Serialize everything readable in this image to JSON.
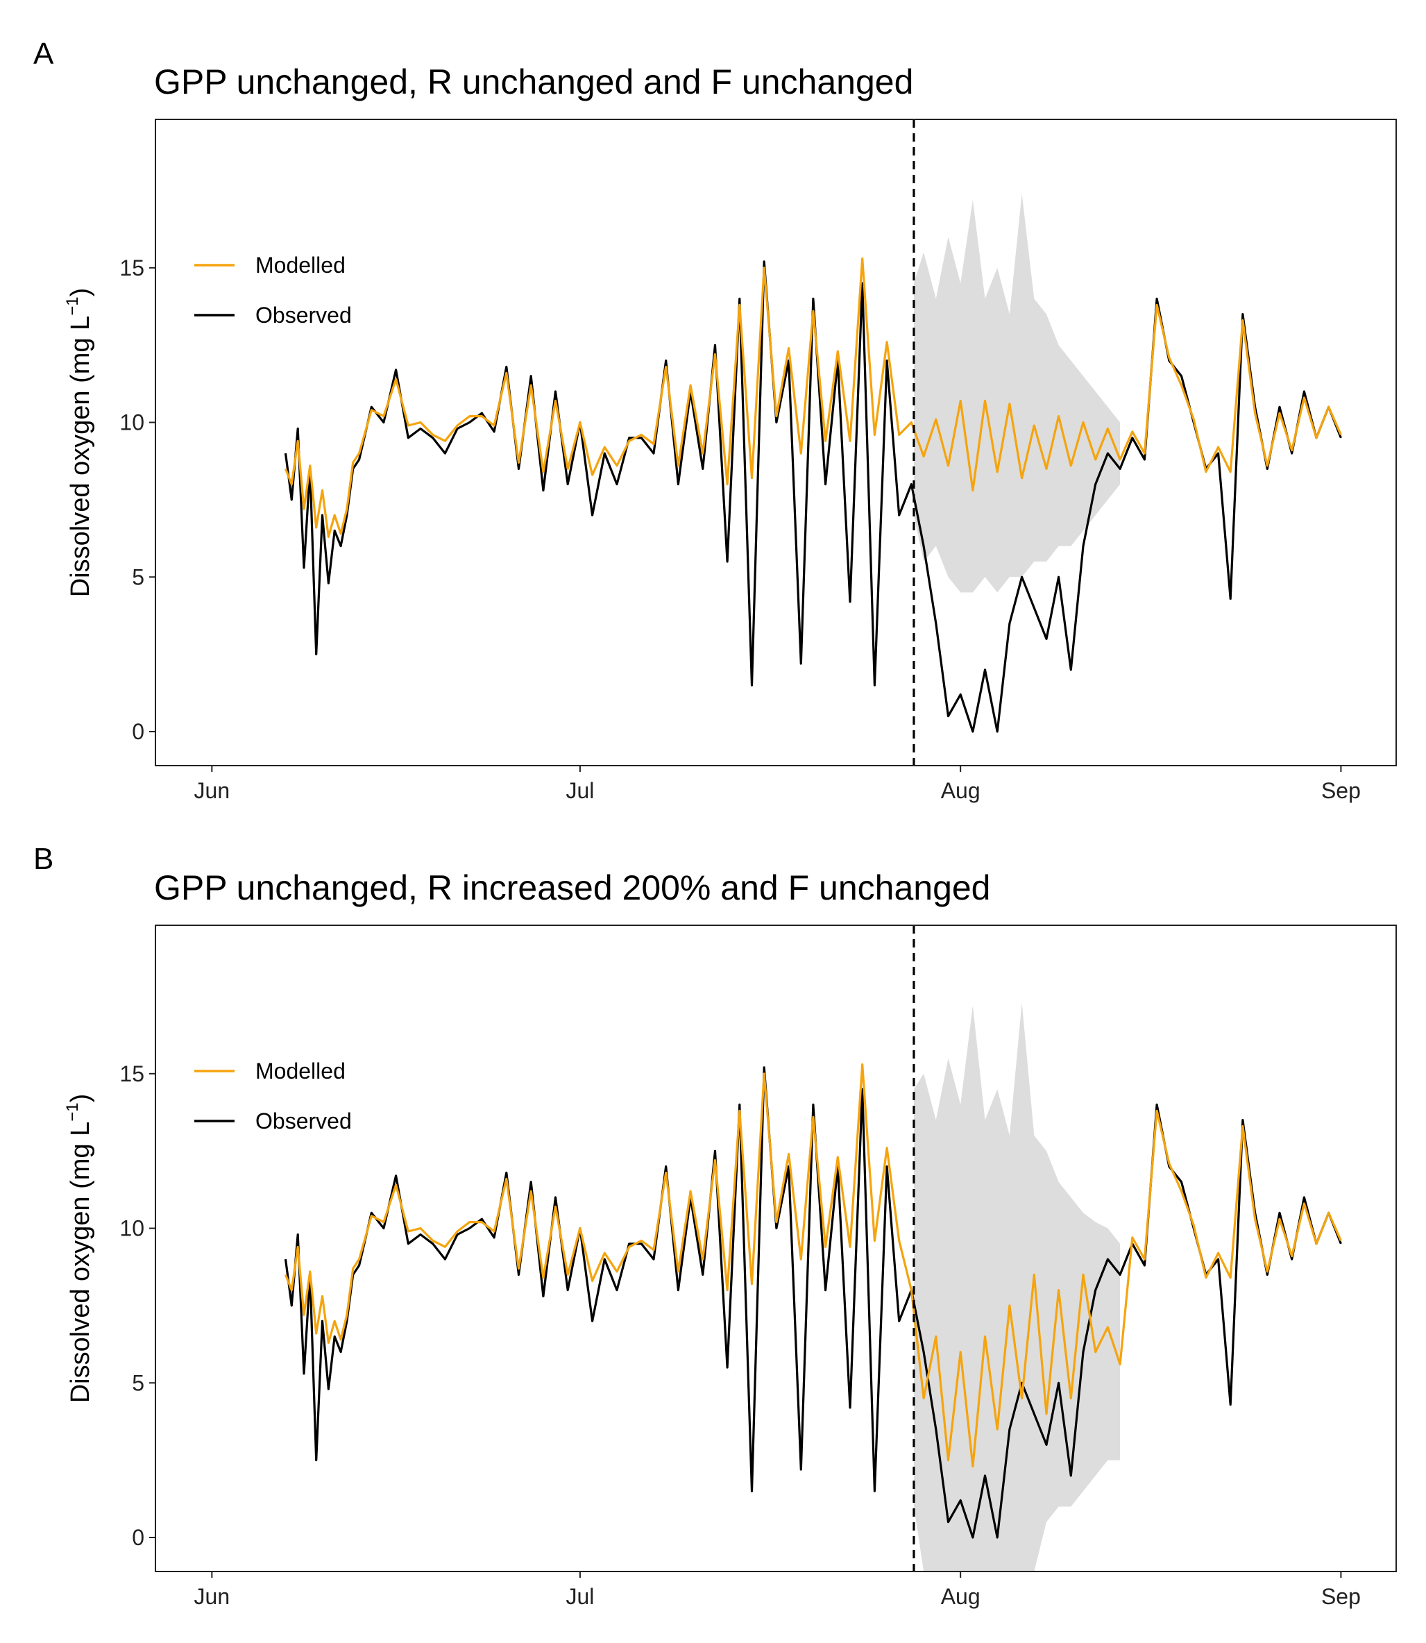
{
  "chart_data": [
    {
      "panel_label": "A",
      "type": "line",
      "title": "GPP unchanged, R unchanged and F unchanged",
      "ylabel_main": "Dissolved oxygen (mg L",
      "ylabel_sup": "−1",
      "ylabel_close": ")",
      "xlabel": "",
      "x_ticks": [
        {
          "label": "Jun",
          "day": 0
        },
        {
          "label": "Jul",
          "day": 30
        },
        {
          "label": "Aug",
          "day": 61
        },
        {
          "label": "Sep",
          "day": 92
        }
      ],
      "y_ticks": [
        0,
        5,
        10,
        15
      ],
      "xlim": [
        -4.6,
        96.5
      ],
      "ylim": [
        -1.1,
        19.8
      ],
      "breakpoint_day": 57.2,
      "grid": false,
      "legend_position": "top-left",
      "legend": {
        "modelled": "Modelled",
        "observed": "Observed"
      },
      "colors": {
        "modelled": "#F5A40E",
        "observed": "#000000",
        "band": "#DDDDDD",
        "vline": "#000000"
      },
      "series": [
        {
          "name": "Observed",
          "x": [
            6,
            6.5,
            7,
            7.5,
            8,
            8.5,
            9,
            9.5,
            10,
            10.5,
            11,
            11.5,
            12,
            13,
            14,
            15,
            16,
            17,
            18,
            19,
            20,
            21,
            22,
            23,
            24,
            25,
            26,
            27,
            28,
            29,
            30,
            31,
            32,
            33,
            34,
            35,
            36,
            37,
            38,
            39,
            40,
            41,
            42,
            43,
            44,
            45,
            46,
            47,
            48,
            49,
            50,
            51,
            52,
            53,
            54,
            55,
            56,
            57,
            58,
            59,
            60,
            61,
            62,
            63,
            64,
            65,
            66,
            67,
            68,
            69,
            70,
            71,
            72,
            73,
            74,
            75,
            76,
            77,
            78,
            79,
            80,
            81,
            82,
            83,
            84,
            85,
            86,
            87,
            88,
            89,
            90,
            91,
            92
          ],
          "y": [
            9.0,
            7.5,
            9.8,
            5.3,
            8.5,
            2.5,
            7.0,
            4.8,
            6.5,
            6.0,
            7.0,
            8.5,
            8.8,
            10.5,
            10.0,
            11.7,
            9.5,
            9.8,
            9.5,
            9.0,
            9.8,
            10.0,
            10.3,
            9.7,
            11.8,
            8.5,
            11.5,
            7.8,
            11.0,
            8.0,
            10.0,
            7.0,
            9.0,
            8.0,
            9.5,
            9.5,
            9.0,
            12.0,
            8.0,
            11.0,
            8.5,
            12.5,
            5.5,
            14.0,
            1.5,
            15.2,
            10.0,
            12.0,
            2.2,
            14.0,
            8.0,
            12.0,
            4.2,
            14.5,
            1.5,
            12.0,
            7.0,
            8.0,
            6.0,
            3.5,
            0.5,
            1.2,
            0.0,
            2.0,
            0.0,
            3.5,
            5.0,
            4.0,
            3.0,
            5.0,
            2.0,
            6.0,
            8.0,
            9.0,
            8.5,
            9.5,
            8.8,
            14.0,
            12.0,
            11.5,
            10.0,
            8.5,
            9.0,
            4.3,
            13.5,
            10.5,
            8.5,
            10.5,
            9.0,
            11.0,
            9.5,
            10.5,
            9.5
          ]
        },
        {
          "name": "Modelled",
          "x": [
            6,
            6.5,
            7,
            7.5,
            8,
            8.5,
            9,
            9.5,
            10,
            10.5,
            11,
            11.5,
            12,
            13,
            14,
            15,
            16,
            17,
            18,
            19,
            20,
            21,
            22,
            23,
            24,
            25,
            26,
            27,
            28,
            29,
            30,
            31,
            32,
            33,
            34,
            35,
            36,
            37,
            38,
            39,
            40,
            41,
            42,
            43,
            44,
            45,
            46,
            47,
            48,
            49,
            50,
            51,
            52,
            53,
            54,
            55,
            56,
            57,
            58,
            59,
            60,
            61,
            62,
            63,
            64,
            65,
            66,
            67,
            68,
            69,
            70,
            71,
            72,
            73,
            74,
            75,
            76,
            77,
            78,
            79,
            80,
            81,
            82,
            83,
            84,
            85,
            86,
            87,
            88,
            89,
            90,
            91,
            92
          ],
          "y": [
            8.5,
            8.0,
            9.4,
            7.2,
            8.6,
            6.6,
            7.8,
            6.3,
            7.0,
            6.4,
            7.2,
            8.7,
            9.0,
            10.4,
            10.2,
            11.4,
            9.9,
            10.0,
            9.6,
            9.4,
            9.9,
            10.2,
            10.2,
            9.9,
            11.6,
            8.7,
            11.2,
            8.4,
            10.7,
            8.5,
            10.0,
            8.3,
            9.2,
            8.6,
            9.4,
            9.6,
            9.3,
            11.8,
            8.6,
            11.2,
            9.0,
            12.2,
            8.0,
            13.8,
            8.2,
            15.0,
            10.2,
            12.4,
            9.0,
            13.6,
            9.4,
            12.3,
            9.4,
            15.3,
            9.6,
            12.6,
            9.6,
            10.0,
            8.9,
            10.1,
            8.6,
            10.7,
            7.8,
            10.7,
            8.4,
            10.6,
            8.2,
            9.9,
            8.5,
            10.2,
            8.6,
            10.0,
            8.8,
            9.8,
            8.8,
            9.7,
            9.0,
            13.8,
            12.1,
            11.2,
            10.1,
            8.4,
            9.2,
            8.4,
            13.3,
            10.3,
            8.6,
            10.3,
            9.1,
            10.8,
            9.5,
            10.5,
            9.6
          ]
        }
      ],
      "band": {
        "x": [
          57.2,
          58,
          59,
          60,
          61,
          62,
          63,
          64,
          65,
          66,
          67,
          68,
          69,
          70,
          71,
          72,
          73,
          74
        ],
        "upper": [
          14.5,
          15.5,
          14.0,
          16.0,
          14.5,
          17.2,
          14.0,
          15.0,
          13.5,
          17.4,
          14.0,
          13.5,
          12.5,
          12.0,
          11.5,
          11.0,
          10.5,
          10.0
        ],
        "lower": [
          7.0,
          5.5,
          6.0,
          5.0,
          4.5,
          4.5,
          5.0,
          4.5,
          5.0,
          5.0,
          5.5,
          5.5,
          6.0,
          6.0,
          6.5,
          7.0,
          7.5,
          8.0
        ]
      }
    },
    {
      "panel_label": "B",
      "type": "line",
      "title": "GPP unchanged, R increased 200% and F unchanged",
      "ylabel_main": "Dissolved oxygen (mg L",
      "ylabel_sup": "−1",
      "ylabel_close": ")",
      "xlabel": "",
      "x_ticks": [
        {
          "label": "Jun",
          "day": 0
        },
        {
          "label": "Jul",
          "day": 30
        },
        {
          "label": "Aug",
          "day": 61
        },
        {
          "label": "Sep",
          "day": 92
        }
      ],
      "y_ticks": [
        0,
        5,
        10,
        15
      ],
      "xlim": [
        -4.6,
        96.5
      ],
      "ylim": [
        -1.1,
        19.8
      ],
      "breakpoint_day": 57.2,
      "grid": false,
      "legend_position": "top-left",
      "legend": {
        "modelled": "Modelled",
        "observed": "Observed"
      },
      "colors": {
        "modelled": "#F5A40E",
        "observed": "#000000",
        "band": "#DDDDDD",
        "vline": "#000000"
      },
      "series": [
        {
          "name": "Observed",
          "x": [
            6,
            6.5,
            7,
            7.5,
            8,
            8.5,
            9,
            9.5,
            10,
            10.5,
            11,
            11.5,
            12,
            13,
            14,
            15,
            16,
            17,
            18,
            19,
            20,
            21,
            22,
            23,
            24,
            25,
            26,
            27,
            28,
            29,
            30,
            31,
            32,
            33,
            34,
            35,
            36,
            37,
            38,
            39,
            40,
            41,
            42,
            43,
            44,
            45,
            46,
            47,
            48,
            49,
            50,
            51,
            52,
            53,
            54,
            55,
            56,
            57,
            58,
            59,
            60,
            61,
            62,
            63,
            64,
            65,
            66,
            67,
            68,
            69,
            70,
            71,
            72,
            73,
            74,
            75,
            76,
            77,
            78,
            79,
            80,
            81,
            82,
            83,
            84,
            85,
            86,
            87,
            88,
            89,
            90,
            91,
            92
          ],
          "y": [
            9.0,
            7.5,
            9.8,
            5.3,
            8.5,
            2.5,
            7.0,
            4.8,
            6.5,
            6.0,
            7.0,
            8.5,
            8.8,
            10.5,
            10.0,
            11.7,
            9.5,
            9.8,
            9.5,
            9.0,
            9.8,
            10.0,
            10.3,
            9.7,
            11.8,
            8.5,
            11.5,
            7.8,
            11.0,
            8.0,
            10.0,
            7.0,
            9.0,
            8.0,
            9.5,
            9.5,
            9.0,
            12.0,
            8.0,
            11.0,
            8.5,
            12.5,
            5.5,
            14.0,
            1.5,
            15.2,
            10.0,
            12.0,
            2.2,
            14.0,
            8.0,
            12.0,
            4.2,
            14.5,
            1.5,
            12.0,
            7.0,
            8.0,
            6.0,
            3.5,
            0.5,
            1.2,
            0.0,
            2.0,
            0.0,
            3.5,
            5.0,
            4.0,
            3.0,
            5.0,
            2.0,
            6.0,
            8.0,
            9.0,
            8.5,
            9.5,
            8.8,
            14.0,
            12.0,
            11.5,
            10.0,
            8.5,
            9.0,
            4.3,
            13.5,
            10.5,
            8.5,
            10.5,
            9.0,
            11.0,
            9.5,
            10.5,
            9.5
          ]
        },
        {
          "name": "Modelled",
          "x": [
            6,
            6.5,
            7,
            7.5,
            8,
            8.5,
            9,
            9.5,
            10,
            10.5,
            11,
            11.5,
            12,
            13,
            14,
            15,
            16,
            17,
            18,
            19,
            20,
            21,
            22,
            23,
            24,
            25,
            26,
            27,
            28,
            29,
            30,
            31,
            32,
            33,
            34,
            35,
            36,
            37,
            38,
            39,
            40,
            41,
            42,
            43,
            44,
            45,
            46,
            47,
            48,
            49,
            50,
            51,
            52,
            53,
            54,
            55,
            56,
            57,
            58,
            59,
            60,
            61,
            62,
            63,
            64,
            65,
            66,
            67,
            68,
            69,
            70,
            71,
            72,
            73,
            74,
            75,
            76,
            77,
            78,
            79,
            80,
            81,
            82,
            83,
            84,
            85,
            86,
            87,
            88,
            89,
            90,
            91,
            92
          ],
          "y": [
            8.5,
            8.0,
            9.4,
            7.2,
            8.6,
            6.6,
            7.8,
            6.3,
            7.0,
            6.4,
            7.2,
            8.7,
            9.0,
            10.4,
            10.2,
            11.4,
            9.9,
            10.0,
            9.6,
            9.4,
            9.9,
            10.2,
            10.2,
            9.9,
            11.6,
            8.7,
            11.2,
            8.4,
            10.7,
            8.5,
            10.0,
            8.3,
            9.2,
            8.6,
            9.4,
            9.6,
            9.3,
            11.8,
            8.6,
            11.2,
            9.0,
            12.2,
            8.0,
            13.8,
            8.2,
            15.0,
            10.2,
            12.4,
            9.0,
            13.6,
            9.4,
            12.3,
            9.4,
            15.3,
            9.6,
            12.6,
            9.6,
            8.0,
            4.5,
            6.5,
            2.5,
            6.0,
            2.3,
            6.5,
            3.5,
            7.5,
            4.5,
            8.5,
            4.0,
            8.0,
            4.5,
            8.5,
            6.0,
            6.8,
            5.6,
            9.7,
            9.0,
            13.8,
            12.1,
            11.2,
            10.1,
            8.4,
            9.2,
            8.4,
            13.3,
            10.3,
            8.6,
            10.3,
            9.1,
            10.8,
            9.5,
            10.5,
            9.6
          ]
        }
      ],
      "band": {
        "x": [
          57.2,
          58,
          59,
          60,
          61,
          62,
          63,
          64,
          65,
          66,
          67,
          68,
          69,
          70,
          71,
          72,
          73,
          74
        ],
        "upper": [
          14.5,
          15.0,
          13.5,
          15.5,
          14.0,
          17.2,
          13.5,
          14.5,
          13.0,
          17.3,
          13.0,
          12.5,
          11.5,
          11.0,
          10.5,
          10.2,
          10.0,
          9.5
        ],
        "lower": [
          1.0,
          -1.1,
          -1.1,
          -1.1,
          -1.1,
          -1.1,
          -1.1,
          -1.1,
          -1.1,
          -1.1,
          -1.1,
          0.5,
          1.0,
          1.0,
          1.5,
          2.0,
          2.5,
          2.5
        ]
      }
    }
  ]
}
